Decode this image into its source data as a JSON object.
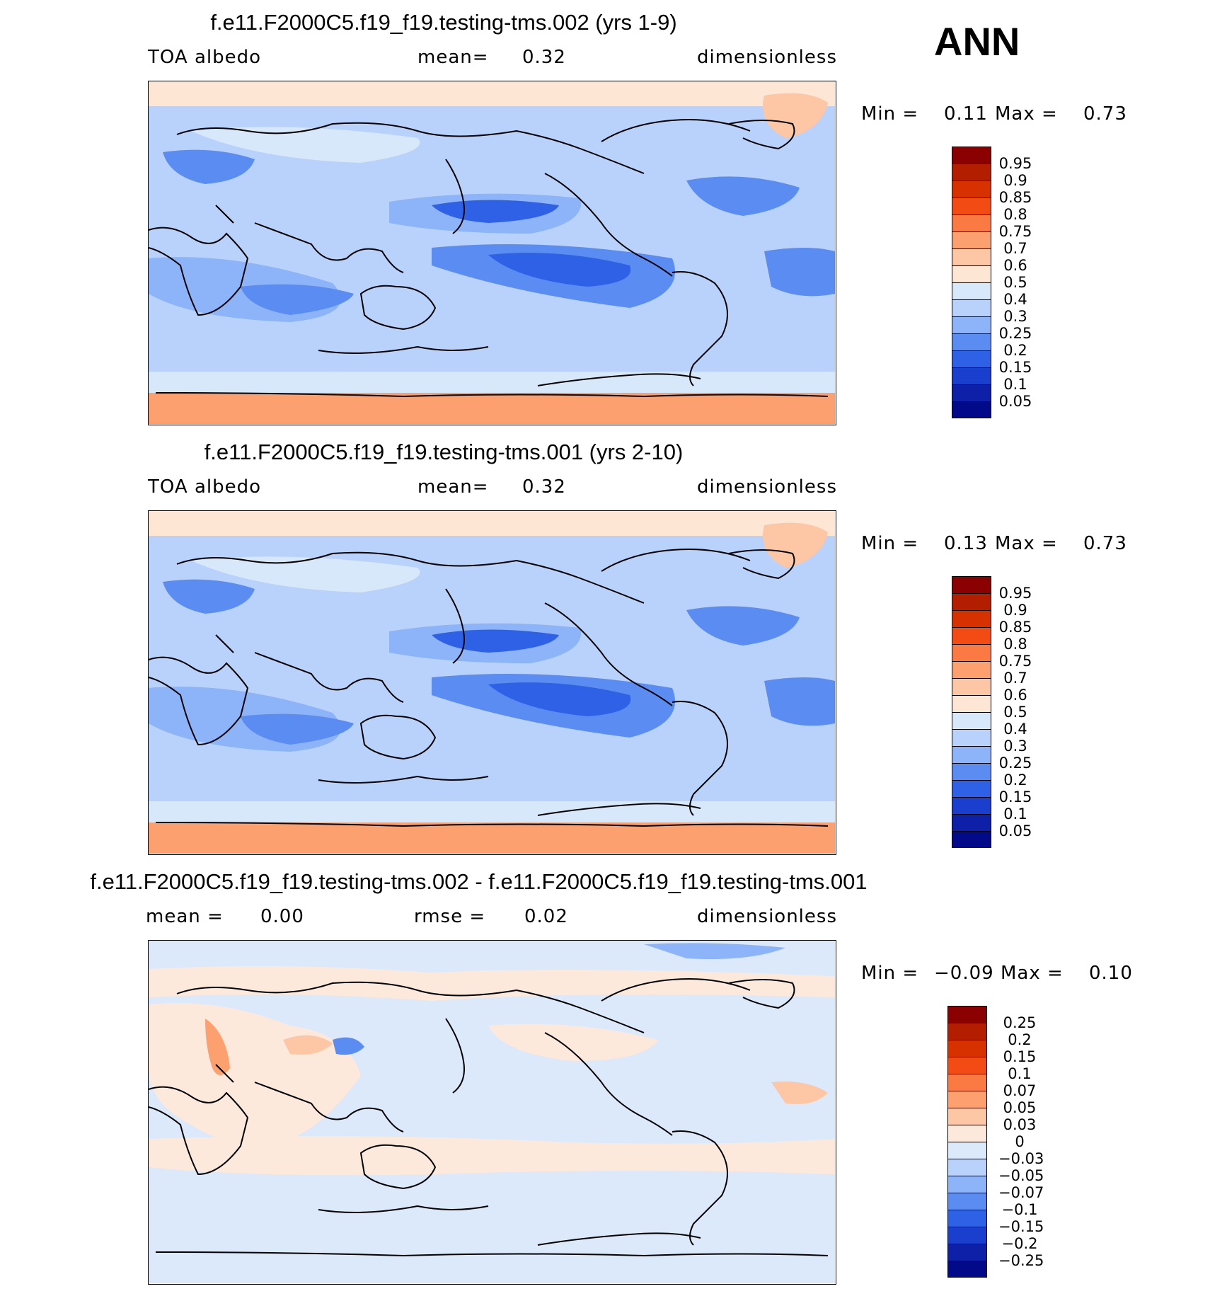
{
  "season": "ANN",
  "panels": [
    {
      "title": "f.e11.F2000C5.f19_f19.testing-tms.002 (yrs 1-9)",
      "left_label": "TOA  albedo",
      "center_label": "mean=",
      "center_value": "0.32",
      "right_label": "dimensionless",
      "min_label": "Min =",
      "min_value": "0.11",
      "max_label": "Max =",
      "max_value": "0.73",
      "field_type": "absolute",
      "colorbar_labels": [
        "0.95",
        "0.9",
        "0.85",
        "0.8",
        "0.75",
        "0.7",
        "0.6",
        "0.5",
        "0.4",
        "0.3",
        "0.25",
        "0.2",
        "0.15",
        "0.1",
        "0.05"
      ],
      "colorbar_colors": [
        "#8b0000",
        "#b31e00",
        "#d83100",
        "#f24c14",
        "#fb7a44",
        "#fda070",
        "#fdc6a4",
        "#fde6d4",
        "#d8e8fb",
        "#b8d2fb",
        "#8db3f8",
        "#5a8cf2",
        "#2f61e6",
        "#1a3fcf",
        "#0f20a8",
        "#030a8a"
      ]
    },
    {
      "title": "f.e11.F2000C5.f19_f19.testing-tms.001 (yrs 2-10)",
      "left_label": "TOA  albedo",
      "center_label": "mean=",
      "center_value": "0.32",
      "right_label": "dimensionless",
      "min_label": "Min =",
      "min_value": "0.13",
      "max_label": "Max =",
      "max_value": "0.73",
      "field_type": "absolute",
      "colorbar_labels": [
        "0.95",
        "0.9",
        "0.85",
        "0.8",
        "0.75",
        "0.7",
        "0.6",
        "0.5",
        "0.4",
        "0.3",
        "0.25",
        "0.2",
        "0.15",
        "0.1",
        "0.05"
      ],
      "colorbar_colors": [
        "#8b0000",
        "#b31e00",
        "#d83100",
        "#f24c14",
        "#fb7a44",
        "#fda070",
        "#fdc6a4",
        "#fde6d4",
        "#d8e8fb",
        "#b8d2fb",
        "#8db3f8",
        "#5a8cf2",
        "#2f61e6",
        "#1a3fcf",
        "#0f20a8",
        "#030a8a"
      ]
    },
    {
      "title": "f.e11.F2000C5.f19_f19.testing-tms.002 - f.e11.F2000C5.f19_f19.testing-tms.001",
      "left_label": "mean =",
      "left_value": "0.00",
      "center_label": "rmse =",
      "center_value": "0.02",
      "right_label": "dimensionless",
      "min_label": "Min =",
      "min_value": "−0.09",
      "max_label": "Max =",
      "max_value": "0.10",
      "field_type": "difference",
      "colorbar_labels": [
        "0.25",
        "0.2",
        "0.15",
        "0.1",
        "0.07",
        "0.05",
        "0.03",
        "0",
        "−0.03",
        "−0.05",
        "−0.07",
        "−0.1",
        "−0.15",
        "−0.2",
        "−0.25"
      ],
      "colorbar_colors": [
        "#8b0000",
        "#b31e00",
        "#d83100",
        "#f24c14",
        "#fb7a44",
        "#fda070",
        "#fdc6a4",
        "#fde9dc",
        "#dbe9fb",
        "#b8d2fb",
        "#8db3f8",
        "#5a8cf2",
        "#2f61e6",
        "#1a3fcf",
        "#0f20a8",
        "#030a8a"
      ]
    }
  ]
}
